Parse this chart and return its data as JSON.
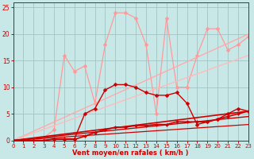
{
  "background_color": "#c8e8e8",
  "grid_color": "#a0c4c4",
  "xlabel": "Vent moyen/en rafales ( km/h )",
  "xlabel_color": "#cc0000",
  "tick_color": "#cc0000",
  "xlim": [
    0,
    23
  ],
  "ylim": [
    0,
    26
  ],
  "xticks": [
    0,
    1,
    2,
    3,
    4,
    5,
    6,
    7,
    8,
    9,
    10,
    11,
    12,
    13,
    14,
    15,
    16,
    17,
    18,
    19,
    20,
    21,
    22,
    23
  ],
  "yticks": [
    0,
    5,
    10,
    15,
    20,
    25
  ],
  "series": [
    {
      "x": [
        0,
        1,
        2,
        3,
        4,
        5,
        6,
        7,
        8,
        9,
        10,
        11,
        12,
        13,
        14,
        15,
        16,
        17,
        18,
        19,
        20,
        21,
        22,
        23
      ],
      "y": [
        0,
        0,
        0,
        0.5,
        2,
        16,
        13,
        14,
        7,
        18,
        24,
        24,
        23,
        18,
        5,
        23,
        10,
        10,
        16,
        21,
        21,
        17,
        18,
        19.5
      ],
      "color": "#ff9999",
      "lw": 0.9,
      "marker": "D",
      "ms": 2.5,
      "alpha": 1.0
    },
    {
      "x": [
        0,
        23
      ],
      "y": [
        0,
        20
      ],
      "color": "#ffaaaa",
      "lw": 1.0,
      "marker": null,
      "ms": 0,
      "alpha": 1.0
    },
    {
      "x": [
        0,
        23
      ],
      "y": [
        0,
        16
      ],
      "color": "#ffbbbb",
      "lw": 1.0,
      "marker": null,
      "ms": 0,
      "alpha": 1.0
    },
    {
      "x": [
        0,
        1,
        2,
        3,
        4,
        5,
        6,
        7,
        8,
        9,
        10,
        11,
        12,
        13,
        14,
        15,
        16,
        17,
        18,
        19,
        20,
        21,
        22,
        23
      ],
      "y": [
        0,
        0,
        0,
        0,
        0.3,
        0.3,
        0.3,
        5,
        6,
        9.5,
        10.5,
        10.5,
        10,
        9,
        8.5,
        8.5,
        9,
        7,
        3,
        3.5,
        4,
        5,
        6,
        5.5
      ],
      "color": "#cc0000",
      "lw": 1.0,
      "marker": "D",
      "ms": 2.5,
      "alpha": 1.0
    },
    {
      "x": [
        0,
        1,
        2,
        3,
        4,
        5,
        6,
        7,
        8,
        9,
        10,
        11,
        12,
        13,
        14,
        15,
        16,
        17,
        18,
        19,
        20,
        21,
        22,
        23
      ],
      "y": [
        0,
        0,
        0,
        0,
        0.2,
        0.2,
        0.2,
        0.8,
        1.5,
        2,
        2.5,
        2.5,
        2.8,
        2.8,
        3,
        3,
        3.5,
        3.5,
        3.5,
        3.5,
        4,
        4.5,
        5,
        5.5
      ],
      "color": "#cc0000",
      "lw": 1.2,
      "marker": "D",
      "ms": 2.0,
      "alpha": 1.0
    },
    {
      "x": [
        0,
        23
      ],
      "y": [
        0,
        5.5
      ],
      "color": "#cc0000",
      "lw": 1.2,
      "marker": null,
      "ms": 0,
      "alpha": 1.0
    },
    {
      "x": [
        0,
        23
      ],
      "y": [
        0,
        4.5
      ],
      "color": "#cc0000",
      "lw": 1.0,
      "marker": null,
      "ms": 0,
      "alpha": 1.0
    },
    {
      "x": [
        0,
        23
      ],
      "y": [
        0,
        3.0
      ],
      "color": "#cc0000",
      "lw": 0.9,
      "marker": null,
      "ms": 0,
      "alpha": 1.0
    }
  ]
}
